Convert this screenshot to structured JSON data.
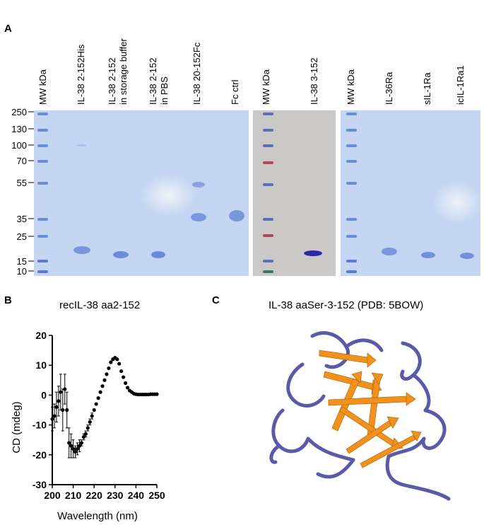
{
  "panels": {
    "a": "A",
    "b": "B",
    "c": "C"
  },
  "gel": {
    "mw_labels": [
      "250",
      "130",
      "100",
      "70",
      "55",
      "35",
      "25",
      "15",
      "10"
    ],
    "lanes_gel1": [
      "MW kDa",
      "IL-38 2-152His",
      "IL-38 2-152",
      "in storage buffer",
      "IL-38 2-152",
      "in PBS",
      "IL-38 20-152Fc",
      "Fc ctrl"
    ],
    "lanes_gel2": [
      "MW kDa",
      "IL-38 3-152"
    ],
    "lanes_gel3": [
      "MW kDa",
      "IL-36Ra",
      "sIL-1Ra",
      "icIL-1Ra1"
    ],
    "colors": {
      "coomassie": "#c6d8f2",
      "silver": "#c9c7c6",
      "band": "#6a88d8",
      "ladder_blue": "#5a7cd0",
      "ladder_red": "#c04a5a"
    }
  },
  "cd_chart": {
    "title": "recIL-38 aa2-152",
    "xlabel": "Wavelength (nm)",
    "ylabel": "CD (mdeg)",
    "x_ticks": [
      "200",
      "210",
      "220",
      "230",
      "240",
      "250"
    ],
    "y_ticks": [
      "20",
      "10",
      "0",
      "-10",
      "-20",
      "-30"
    ]
  },
  "chart_data": {
    "type": "scatter",
    "title": "recIL-38 aa2-152",
    "xlabel": "Wavelength (nm)",
    "ylabel": "CD (mdeg)",
    "xlim": [
      200,
      250
    ],
    "ylim": [
      -30,
      20
    ],
    "series": [
      {
        "x": [
          200,
          201,
          202,
          203,
          204,
          205,
          206,
          207,
          208,
          209,
          210,
          211,
          212,
          213,
          214,
          215,
          216,
          217,
          218,
          219,
          220,
          221,
          222,
          223,
          224,
          225,
          226,
          227,
          228,
          229,
          230,
          231,
          232,
          233,
          234,
          235,
          236,
          237,
          238,
          239,
          240,
          241,
          242,
          243,
          244,
          245,
          246,
          247,
          248,
          249,
          250
        ],
        "y": [
          -8,
          -7,
          -4,
          -2,
          1,
          -5,
          2,
          -5,
          -16,
          -17,
          -18,
          -19,
          -18,
          -17,
          -16,
          -14,
          -13,
          -11,
          -9,
          -7,
          -5,
          -3,
          -1,
          1,
          3,
          5,
          7,
          9,
          11,
          12,
          12.5,
          12,
          10.5,
          8,
          6,
          4,
          2.5,
          1.5,
          1,
          0.5,
          0.3,
          0.2,
          0.2,
          0.2,
          0.2,
          0.2,
          0.2,
          0.3,
          0.3,
          0.3,
          0.3
        ],
        "err": [
          4,
          4,
          5,
          5,
          6,
          7,
          5,
          6,
          5,
          4,
          3,
          2,
          2,
          2,
          1,
          1,
          1,
          1,
          1,
          1,
          0.5,
          0.5,
          0.5,
          0.5,
          0.5,
          0.5,
          0.5,
          0.5,
          0.5,
          0.5,
          0.5,
          0.5,
          0.5,
          0.5,
          0.5,
          0.5,
          0.5,
          0.5,
          0.5,
          0.5,
          0.5,
          0.5,
          0.5,
          0.5,
          0.5,
          0.5,
          0.5,
          0.5,
          0.5,
          0.5,
          0.5
        ]
      }
    ]
  },
  "structure": {
    "title": "IL-38 aaSer-3-152 (PDB: 5BOW)",
    "colors": {
      "coil": "#5a5aa8",
      "strand": "#f2921e"
    }
  }
}
